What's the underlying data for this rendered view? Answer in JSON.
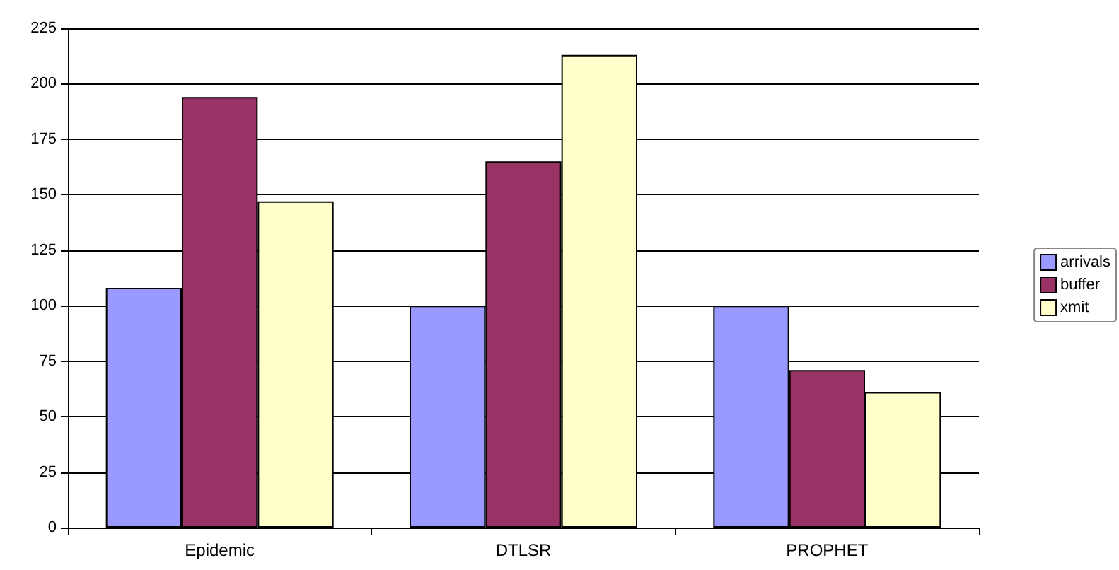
{
  "chart_data": {
    "type": "bar",
    "categories": [
      "Epidemic",
      "DTLSR",
      "PROPHET"
    ],
    "series": [
      {
        "name": "arrivals",
        "color": "#9999ff",
        "values": [
          108,
          100,
          100
        ]
      },
      {
        "name": "buffer",
        "color": "#993366",
        "values": [
          194,
          165,
          71
        ]
      },
      {
        "name": "xmit",
        "color": "#ffffcc",
        "values": [
          147,
          213,
          61
        ]
      }
    ],
    "ylim": [
      0,
      225
    ],
    "yticks": [
      0,
      25,
      50,
      75,
      100,
      125,
      150,
      175,
      200,
      225
    ],
    "grid": "y",
    "legend": "right"
  }
}
